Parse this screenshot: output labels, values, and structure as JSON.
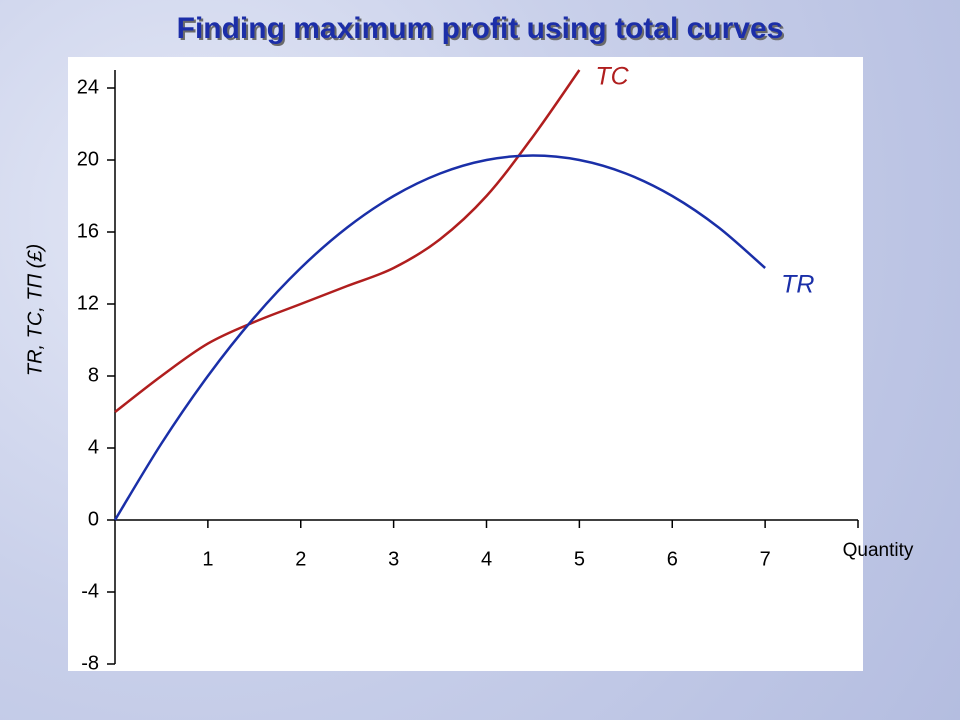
{
  "chart_data": {
    "type": "line",
    "title": "Finding maximum profit using total curves",
    "y_label": "TR, TC, TΠ (£)",
    "x_label": "Quantity",
    "x": [
      0,
      0.5,
      1,
      1.5,
      2,
      2.5,
      3,
      3.5,
      4,
      4.5,
      5,
      5.5,
      6,
      6.5,
      7
    ],
    "series": [
      {
        "name": "TC",
        "color": "#b01e1e",
        "values": [
          6,
          8,
          9.8,
          11,
          12,
          13,
          14,
          15.6,
          18,
          21.3,
          25,
          null,
          null,
          null,
          null
        ]
      },
      {
        "name": "TR",
        "color": "#1a2fa8",
        "values": [
          0,
          4.25,
          8,
          11.25,
          14,
          16.25,
          18,
          19.25,
          20,
          20.25,
          20,
          19.25,
          18,
          16.25,
          14
        ]
      }
    ],
    "xlim": [
      0,
      8
    ],
    "ylim": [
      -8,
      25
    ],
    "xticks": [
      1,
      2,
      3,
      4,
      5,
      6,
      7
    ],
    "yticks": [
      -8,
      -4,
      0,
      4,
      8,
      12,
      16,
      20,
      24
    ]
  }
}
